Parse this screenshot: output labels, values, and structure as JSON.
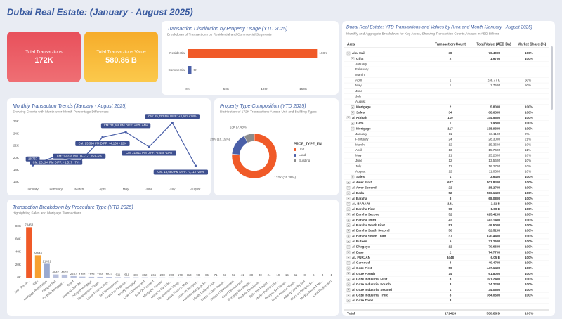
{
  "header": {
    "title": "Dubai Real Estate:  (January - August 2025)"
  },
  "kpis": [
    {
      "label": "Total Transactions",
      "value": "172K"
    },
    {
      "label": "Total Transactions Value",
      "value": "580.86 B"
    }
  ],
  "chart_data": [
    {
      "type": "hbar",
      "title": "Transaction Distribution by Property Usage (YTD 2025)",
      "subtitle": "Breakdown of Transactions by Residential and Commercial Segments",
      "categories": [
        "Residential",
        "Commercial"
      ],
      "values": [
        168000,
        5000
      ],
      "value_labels": [
        "168K",
        "5K"
      ],
      "colors": [
        "#f05a28",
        "#4a5fa8"
      ],
      "xlim": [
        0,
        185000
      ],
      "xticks": [
        {
          "value": 0,
          "label": "0K"
        },
        {
          "value": 50000,
          "label": "50K"
        },
        {
          "value": 100000,
          "label": "100K"
        },
        {
          "value": 150000,
          "label": "150K"
        }
      ]
    },
    {
      "type": "line",
      "title": "Monthly Transaction Trends (January - August 2025)",
      "subtitle": "Showing Counts with Month-over-Month Percentage Differences",
      "categories": [
        "January",
        "February",
        "March",
        "April",
        "May",
        "June",
        "July",
        "August"
      ],
      "values": [
        18767,
        20284,
        19231,
        23394,
        24269,
        21811,
        25792,
        18680
      ],
      "value_labels": [
        "18,767",
        "CM: 20,284 PM DIFF: +1,517 +7%",
        "CM: 19,231 PM DIFF: -1,053 -5%",
        "CM: 23,394 PM DIFF: +4,163 +22%",
        "CM: 24,269 PM DIFF: +875 +4%",
        "CM: 21,811 PM DIFF: -2,458 -10%",
        "CM: 25,792 PM DIFF: +3,981 +18%",
        "CM: 18,680 PM DIFF: -7,112 -28%"
      ],
      "color": "#4a5fa8",
      "ylim": [
        15500,
        26500
      ],
      "yticks": [
        {
          "value": 16000,
          "label": "16K"
        },
        {
          "value": 18000,
          "label": "18K"
        },
        {
          "value": 20000,
          "label": "20K"
        },
        {
          "value": 22000,
          "label": "22K"
        },
        {
          "value": 24000,
          "label": "24K"
        },
        {
          "value": 26000,
          "label": "26K"
        }
      ]
    },
    {
      "type": "pie",
      "title": "Property Type Composition (YTD 2025)",
      "subtitle": "Distribution of 172K Transactions Across Unit and Building Types",
      "legend_title": "PROP_TYPE_EN",
      "categories": [
        "Unit",
        "Land",
        "Building"
      ],
      "values": [
        76.38,
        16.19,
        7.43
      ],
      "value_labels": [
        "132K (76.38%)",
        "28K (16.19%)",
        "13K (7.43%)"
      ],
      "colors": [
        "#f05a28",
        "#4a5fa8",
        "#8c8c8c"
      ]
    },
    {
      "type": "bar",
      "title": "Transaction Breakdown by Procedure Type (YTD 2025)",
      "subtitle": "Highlighting Sales and Mortgage Transactions",
      "categories": [
        "Sell - Pre re...",
        "Sale",
        "Mortgage Registration",
        "Delayed Sell",
        "Portfolio Mortgage ...",
        "Grant",
        "Lease to Own Re...",
        "Delayed Mortgage",
        "Development Regis...",
        "Lease Finance Reg...",
        "Sell Development",
        "Grant Pre-Registra...",
        "Modify Mortgage",
        "Lease Development",
        "Sale On Payment",
        "Mortgage Transfer",
        "Lease to Own Mo...",
        "Development Mortg...",
        "Lease Finance Mod...",
        "Grant on Delayed...",
        "Portfolio Mortgage M...",
        "Modify Delayed Mor...",
        "Lease to Own Transf...",
        "Delayed Development",
        "Grant Development",
        "Mortgage Pre-Regist...",
        "Portfolio Developm...",
        "Sell - Pre Registr...",
        "Modify Portfolio Mo...",
        "Delayed Sell Devel...",
        "Lease Finance Trans...",
        "Adding Land By Sell",
        "Grant on Delayed M...",
        "Modify Delayed Mo...",
        "Land Registration"
      ],
      "values": [
        78463,
        34643,
        21461,
        4842,
        4503,
        2287,
        1491,
        1178,
        1150,
        1044,
        611,
        611,
        408,
        362,
        266,
        208,
        200,
        179,
        113,
        98,
        85,
        71,
        63,
        52,
        41,
        38,
        30,
        24,
        19,
        15,
        11,
        8,
        6,
        3,
        1
      ],
      "colors": [
        "#f05a28",
        "#f7a030",
        "#9aaad0",
        "#b8c0dc",
        "#b8c0dc",
        "#b8c0dc",
        "#b8c0dc",
        "#b8c0dc",
        "#b8c0dc",
        "#b8c0dc",
        "#b8c0dc",
        "#b8c0dc",
        "#b8c0dc",
        "#b8c0dc",
        "#b8c0dc",
        "#b8c0dc",
        "#b8c0dc",
        "#b8c0dc",
        "#b8c0dc",
        "#b8c0dc",
        "#b8c0dc",
        "#b8c0dc",
        "#b8c0dc",
        "#b8c0dc",
        "#b8c0dc",
        "#b8c0dc",
        "#b8c0dc",
        "#b8c0dc",
        "#b8c0dc",
        "#b8c0dc",
        "#b8c0dc",
        "#b8c0dc",
        "#b8c0dc",
        "#b8c0dc",
        "#b8c0dc"
      ],
      "ylim": [
        0,
        85000
      ],
      "yticks": [
        {
          "value": 0,
          "label": "0K"
        },
        {
          "value": 20000,
          "label": "20K"
        },
        {
          "value": 40000,
          "label": "40K"
        },
        {
          "value": 60000,
          "label": "60K"
        },
        {
          "value": 80000,
          "label": "80K"
        }
      ]
    }
  ],
  "table": {
    "title": "Dubai Real Estate: YTD Transactions and Values by Area and Month (January - August 2025)",
    "subtitle": "Monthly and Aggregate Breakdown for Key Areas, Showing Transaction Counts, Values in AED Billions",
    "columns": [
      "Area",
      "Transaction Count",
      "Total Value (AED Bn)",
      "Market Share (%)"
    ],
    "rows": [
      {
        "cells": [
          "Abu Hail",
          "38",
          "76.40 M",
          "100%"
        ],
        "children": [
          {
            "cells": [
              "Gifts",
              "2",
              "1.97 M",
              "100%"
            ],
            "children": [
              {
                "cells": [
                  "January"
                ]
              },
              {
                "cells": [
                  "February"
                ]
              },
              {
                "cells": [
                  "March"
                ]
              },
              {
                "cells": [
                  "April",
                  "1",
                  "238.77 K",
                  "50%"
                ]
              },
              {
                "cells": [
                  "May",
                  "1",
                  "1.75 M",
                  "50%"
                ]
              },
              {
                "cells": [
                  "June"
                ]
              },
              {
                "cells": [
                  "July"
                ]
              },
              {
                "cells": [
                  "August"
                ]
              }
            ]
          },
          {
            "cells": [
              "Mortgage",
              "2",
              "5.80 M",
              "100%"
            ]
          },
          {
            "cells": [
              "Sales",
              "34",
              "68.63 M",
              "100%"
            ]
          }
        ]
      },
      {
        "cells": [
          "Al Athbah",
          "119",
          "144.55 M",
          "100%"
        ],
        "children": [
          {
            "cells": [
              "Gifts",
              "1",
              "1.98 M",
              "100%"
            ]
          },
          {
            "cells": [
              "Mortgage",
              "117",
              "138.93 M",
              "100%"
            ],
            "children": [
              {
                "cells": [
                  "January",
                  "11",
                  "13.11 M",
                  "9%"
                ]
              },
              {
                "cells": [
                  "February",
                  "24",
                  "28.30 M",
                  "21%"
                ]
              },
              {
                "cells": [
                  "March",
                  "12",
                  "15.36 M",
                  "10%"
                ]
              },
              {
                "cells": [
                  "April",
                  "13",
                  "15.76 M",
                  "11%"
                ]
              },
              {
                "cells": [
                  "May",
                  "21",
                  "25.28 M",
                  "18%"
                ]
              },
              {
                "cells": [
                  "June",
                  "12",
                  "13.56 M",
                  "10%"
                ]
              },
              {
                "cells": [
                  "July",
                  "12",
                  "16.27 M",
                  "10%"
                ]
              },
              {
                "cells": [
                  "August",
                  "12",
                  "11.06 M",
                  "10%"
                ]
              }
            ]
          },
          {
            "cells": [
              "Sales",
              "1",
              "3.64 M",
              "100%"
            ]
          }
        ]
      },
      {
        "cells": [
          "Al Awer First",
          "627",
          "503.84 M",
          "100%"
        ]
      },
      {
        "cells": [
          "Al Awer Second",
          "22",
          "18.27 M",
          "100%"
        ]
      },
      {
        "cells": [
          "Al Bada",
          "52",
          "586.14 M",
          "100%"
        ]
      },
      {
        "cells": [
          "Al Baraha",
          "8",
          "68.08 M",
          "100%"
        ]
      },
      {
        "cells": [
          "AL BARARI",
          "131",
          "2.11 B",
          "100%"
        ]
      },
      {
        "cells": [
          "Al Barsha First",
          "90",
          "1.60 B",
          "100%"
        ]
      },
      {
        "cells": [
          "Al Barsha Second",
          "52",
          "625.42 M",
          "100%"
        ]
      },
      {
        "cells": [
          "Al Barsha Third",
          "42",
          "242.14 M",
          "100%"
        ]
      },
      {
        "cells": [
          "Al Barsha South First",
          "53",
          "49.50 M",
          "100%"
        ]
      },
      {
        "cells": [
          "Al Barsha South Second",
          "50",
          "82.52 M",
          "100%"
        ]
      },
      {
        "cells": [
          "Al Barsha South Third",
          "37",
          "870.44 M",
          "100%"
        ]
      },
      {
        "cells": [
          "Al Buteen",
          "5",
          "23.25 M",
          "100%"
        ]
      },
      {
        "cells": [
          "Al Dhagaya",
          "12",
          "70.66 M",
          "100%"
        ]
      },
      {
        "cells": [
          "Al Eyas",
          "2",
          "74.77 M",
          "100%"
        ]
      },
      {
        "cells": [
          "AL FURJAN",
          "3448",
          "6.05 B",
          "100%"
        ]
      },
      {
        "cells": [
          "Al Garhoud",
          "4",
          "40.47 M",
          "100%"
        ]
      },
      {
        "cells": [
          "Al Goze First",
          "50",
          "447.14 M",
          "100%"
        ]
      },
      {
        "cells": [
          "Al Goze Fourth",
          "14",
          "61.80 M",
          "100%"
        ]
      },
      {
        "cells": [
          "Al Goze Industrial First",
          "3",
          "391.24 M",
          "100%"
        ]
      },
      {
        "cells": [
          "Al Goze Industrial Fourth",
          "3",
          "24.22 M",
          "100%"
        ]
      },
      {
        "cells": [
          "Al Goze Industrial Second",
          "1",
          "34.06 M",
          "100%"
        ]
      },
      {
        "cells": [
          "Al Goze Industrial Third",
          "8",
          "364.06 M",
          "100%"
        ]
      },
      {
        "cells": [
          "Al Goze Third",
          "3"
        ]
      }
    ],
    "total": [
      "Total",
      "172428",
      "580.86 B",
      "100%"
    ]
  }
}
